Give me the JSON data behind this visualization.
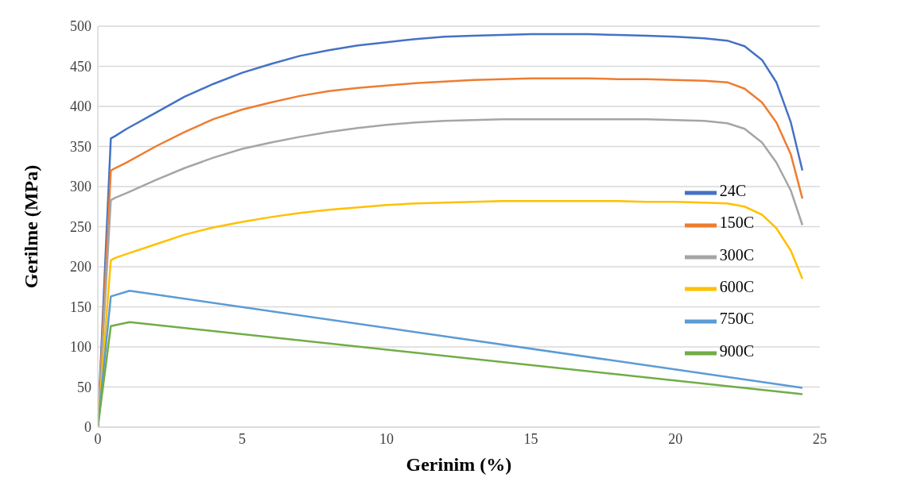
{
  "chart_data": {
    "type": "line",
    "xlabel": "Gerinim (%)",
    "ylabel": "Gerilme (MPa)",
    "xlim": [
      0,
      25
    ],
    "xticks": [
      0,
      5,
      10,
      15,
      20,
      25
    ],
    "ylim": [
      0,
      500
    ],
    "yticks": [
      0,
      50,
      100,
      150,
      200,
      250,
      300,
      350,
      400,
      450,
      500
    ],
    "grid": "y",
    "legend": "right",
    "marker": "none",
    "line_style": "solid",
    "series": [
      {
        "name": "24C",
        "color": "#4472c4",
        "x": [
          0,
          0.45,
          0.6,
          1,
          2,
          3,
          4,
          5,
          6,
          7,
          8,
          9,
          10,
          11,
          12,
          13,
          14,
          15,
          16,
          17,
          18,
          19,
          20,
          21,
          21.8,
          22.4,
          23,
          23.5,
          24,
          24.4
        ],
        "values": [
          0,
          360,
          363,
          372,
          392,
          412,
          428,
          442,
          453,
          463,
          470,
          476,
          480,
          484,
          487,
          488,
          489,
          490,
          490,
          490,
          489,
          488,
          487,
          485,
          482,
          475,
          458,
          430,
          380,
          320
        ]
      },
      {
        "name": "150C",
        "color": "#ed7d31",
        "x": [
          0,
          0.45,
          0.6,
          1,
          2,
          3,
          4,
          5,
          6,
          7,
          8,
          9,
          10,
          11,
          12,
          13,
          14,
          15,
          16,
          17,
          18,
          19,
          20,
          21,
          21.8,
          22.4,
          23,
          23.5,
          24,
          24.4
        ],
        "values": [
          0,
          320,
          323,
          330,
          350,
          368,
          384,
          396,
          405,
          413,
          419,
          423,
          426,
          429,
          431,
          433,
          434,
          435,
          435,
          435,
          434,
          434,
          433,
          432,
          430,
          422,
          405,
          380,
          340,
          285
        ]
      },
      {
        "name": "300C",
        "color": "#a5a5a5",
        "x": [
          0,
          0.45,
          0.6,
          1,
          2,
          3,
          4,
          5,
          6,
          7,
          8,
          9,
          10,
          11,
          12,
          13,
          14,
          15,
          16,
          17,
          18,
          19,
          20,
          21,
          21.8,
          22.4,
          23,
          23.5,
          24,
          24.4
        ],
        "values": [
          0,
          283,
          286,
          292,
          308,
          323,
          336,
          347,
          355,
          362,
          368,
          373,
          377,
          380,
          382,
          383,
          384,
          384,
          384,
          384,
          384,
          384,
          383,
          382,
          379,
          372,
          355,
          330,
          295,
          252
        ]
      },
      {
        "name": "600C",
        "color": "#ffc000",
        "x": [
          0,
          0.45,
          0.6,
          1,
          2,
          3,
          4,
          5,
          6,
          7,
          8,
          9,
          10,
          11,
          12,
          13,
          14,
          15,
          16,
          17,
          18,
          19,
          20,
          21,
          21.8,
          22.4,
          23,
          23.5,
          24,
          24.4
        ],
        "values": [
          0,
          208,
          211,
          216,
          228,
          240,
          249,
          256,
          262,
          267,
          271,
          274,
          277,
          279,
          280,
          281,
          282,
          282,
          282,
          282,
          282,
          281,
          281,
          280,
          279,
          275,
          265,
          248,
          220,
          185
        ]
      },
      {
        "name": "750C",
        "color": "#5b9bd5",
        "x": [
          0,
          0.45,
          1.1,
          24.4
        ],
        "values": [
          0,
          163,
          170,
          49
        ]
      },
      {
        "name": "900C",
        "color": "#70ad47",
        "x": [
          0,
          0.45,
          1.1,
          24.4
        ],
        "values": [
          0,
          126,
          131,
          41
        ]
      }
    ]
  }
}
